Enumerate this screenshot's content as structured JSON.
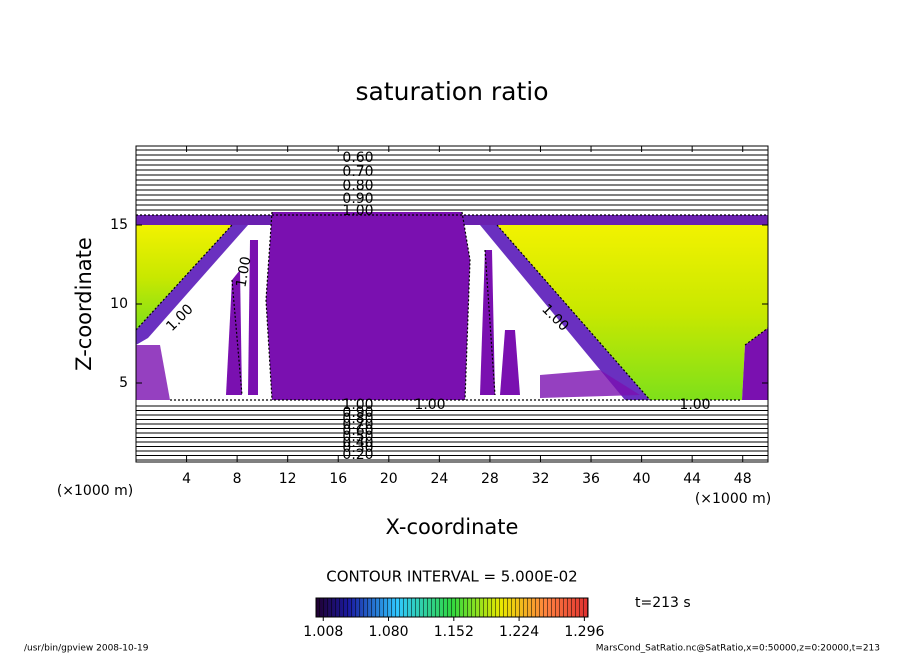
{
  "chart_data": {
    "type": "contour",
    "title": "saturation ratio",
    "xlabel": "X-coordinate",
    "ylabel": "Z-coordinate",
    "xunit": "(×1000 m)",
    "yunit": "(×1000 m)",
    "xlim": [
      0,
      50
    ],
    "ylim": [
      0,
      20
    ],
    "xticks": [
      4,
      8,
      12,
      16,
      20,
      24,
      28,
      32,
      36,
      40,
      44,
      48
    ],
    "yticks": [
      5,
      10,
      15
    ],
    "contour_labels": [
      "0.60",
      "0.70",
      "0.80",
      "0.90",
      "1.00",
      "1.00",
      "0.90",
      "0.80",
      "0.70",
      "0.60",
      "0.50",
      "0.40",
      "0.30",
      "0.20",
      "1.00",
      "1.00",
      "1.00",
      "1.00",
      "1.00"
    ],
    "contour_interval": "CONTOUR INTERVAL = 5.000E-02",
    "colorbar": {
      "clim": [
        1.0,
        1.3
      ],
      "ticks": [
        1.008,
        {
          "value": 1.08,
          "label": "1.080"
        },
        1.152,
        1.224,
        1.296
      ]
    },
    "time_label": "t=213 s",
    "footer_left": "/usr/bin/gpview  2008-10-19",
    "footer_right": "MarsCond_SatRatio.nc@SatRatio,x=0:50000,z=0:20000,t=213"
  }
}
